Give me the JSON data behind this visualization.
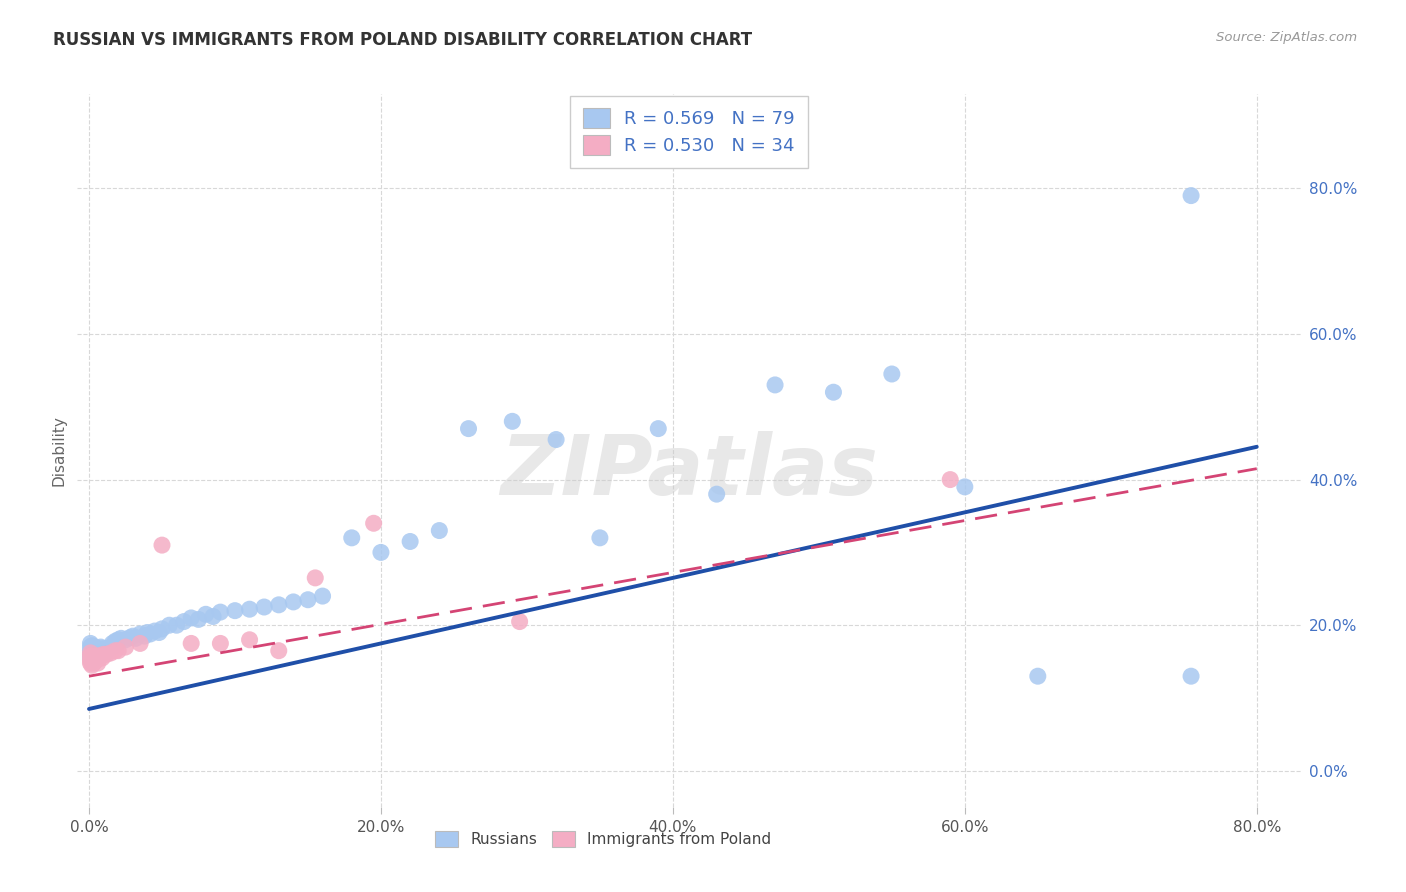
{
  "title": "RUSSIAN VS IMMIGRANTS FROM POLAND DISABILITY CORRELATION CHART",
  "source": "Source: ZipAtlas.com",
  "ylabel": "Disability",
  "xlim": [
    -0.008,
    0.83
  ],
  "ylim": [
    -0.05,
    0.93
  ],
  "xticks": [
    0.0,
    0.2,
    0.4,
    0.6,
    0.8
  ],
  "yticks": [
    0.0,
    0.2,
    0.4,
    0.6,
    0.8
  ],
  "xtick_labels": [
    "0.0%",
    "20.0%",
    "40.0%",
    "60.0%",
    "80.0%"
  ],
  "ytick_labels": [
    "0.0%",
    "20.0%",
    "40.0%",
    "60.0%",
    "80.0%"
  ],
  "russian_color": "#a8c8f0",
  "polish_color": "#f4adc4",
  "russian_line_color": "#1f4fa8",
  "polish_line_color": "#d44474",
  "russian_R": 0.569,
  "russian_N": 79,
  "polish_R": 0.53,
  "polish_N": 34,
  "legend1_label": "Russians",
  "legend2_label": "Immigrants from Poland",
  "background_color": "#ffffff",
  "grid_color": "#d8d8d8",
  "legend_text_color": "#4472c4",
  "right_axis_color": "#4472c4",
  "title_color": "#333333",
  "source_color": "#999999",
  "russian_trendline_start": 0.085,
  "russian_trendline_end": 0.445,
  "polish_trendline_start": 0.13,
  "polish_trendline_end": 0.415,
  "russian_points_x": [
    0.001,
    0.001,
    0.001,
    0.001,
    0.001,
    0.002,
    0.002,
    0.002,
    0.002,
    0.003,
    0.003,
    0.003,
    0.004,
    0.004,
    0.004,
    0.005,
    0.005,
    0.006,
    0.006,
    0.007,
    0.007,
    0.008,
    0.008,
    0.009,
    0.01,
    0.01,
    0.011,
    0.012,
    0.013,
    0.015,
    0.016,
    0.017,
    0.018,
    0.019,
    0.02,
    0.022,
    0.025,
    0.028,
    0.03,
    0.032,
    0.035,
    0.038,
    0.04,
    0.042,
    0.045,
    0.048,
    0.05,
    0.055,
    0.06,
    0.065,
    0.07,
    0.075,
    0.08,
    0.085,
    0.09,
    0.1,
    0.11,
    0.12,
    0.13,
    0.14,
    0.15,
    0.16,
    0.18,
    0.2,
    0.22,
    0.24,
    0.26,
    0.29,
    0.32,
    0.35,
    0.39,
    0.43,
    0.47,
    0.51,
    0.55,
    0.6,
    0.65,
    0.755,
    0.755
  ],
  "russian_points_y": [
    0.155,
    0.16,
    0.165,
    0.17,
    0.175,
    0.15,
    0.158,
    0.165,
    0.172,
    0.155,
    0.163,
    0.17,
    0.155,
    0.162,
    0.17,
    0.158,
    0.165,
    0.16,
    0.168,
    0.158,
    0.165,
    0.162,
    0.17,
    0.165,
    0.16,
    0.168,
    0.163,
    0.165,
    0.168,
    0.17,
    0.175,
    0.172,
    0.178,
    0.175,
    0.18,
    0.182,
    0.18,
    0.183,
    0.185,
    0.182,
    0.188,
    0.185,
    0.19,
    0.188,
    0.192,
    0.19,
    0.195,
    0.2,
    0.2,
    0.205,
    0.21,
    0.208,
    0.215,
    0.212,
    0.218,
    0.22,
    0.222,
    0.225,
    0.228,
    0.232,
    0.235,
    0.24,
    0.32,
    0.3,
    0.315,
    0.33,
    0.47,
    0.48,
    0.455,
    0.32,
    0.47,
    0.38,
    0.53,
    0.52,
    0.545,
    0.39,
    0.13,
    0.79,
    0.13
  ],
  "polish_points_x": [
    0.001,
    0.001,
    0.001,
    0.001,
    0.002,
    0.002,
    0.002,
    0.003,
    0.003,
    0.004,
    0.004,
    0.005,
    0.005,
    0.006,
    0.006,
    0.007,
    0.008,
    0.009,
    0.01,
    0.012,
    0.015,
    0.018,
    0.02,
    0.025,
    0.035,
    0.05,
    0.07,
    0.09,
    0.11,
    0.13,
    0.155,
    0.195,
    0.295,
    0.59
  ],
  "polish_points_y": [
    0.148,
    0.152,
    0.158,
    0.162,
    0.145,
    0.152,
    0.158,
    0.148,
    0.155,
    0.15,
    0.157,
    0.152,
    0.158,
    0.148,
    0.155,
    0.155,
    0.158,
    0.155,
    0.16,
    0.16,
    0.162,
    0.165,
    0.165,
    0.17,
    0.175,
    0.31,
    0.175,
    0.175,
    0.18,
    0.165,
    0.265,
    0.34,
    0.205,
    0.4
  ]
}
